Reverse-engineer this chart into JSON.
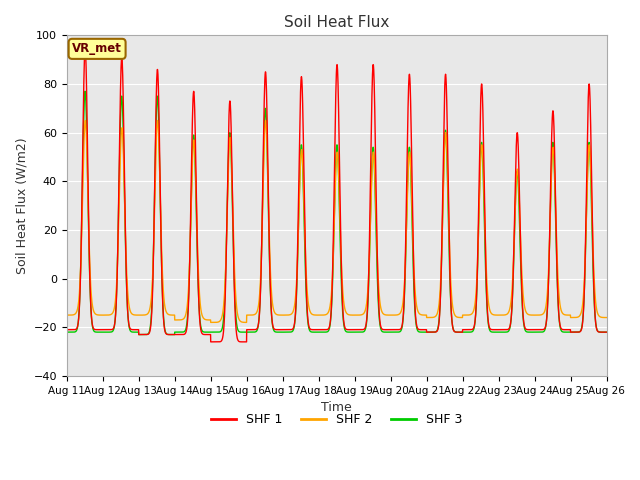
{
  "title": "Soil Heat Flux",
  "xlabel": "Time",
  "ylabel": "Soil Heat Flux (W/m2)",
  "ylim": [
    -40,
    100
  ],
  "xlim": [
    0,
    3600
  ],
  "background_color": "#ffffff",
  "plot_bg_color": "#e8e8e8",
  "grid_color": "#ffffff",
  "legend_labels": [
    "SHF 1",
    "SHF 2",
    "SHF 3"
  ],
  "legend_colors": [
    "#ff0000",
    "#ffa500",
    "#00cc00"
  ],
  "annotation_text": "VR_met",
  "annotation_bg": "#ffff99",
  "annotation_border": "#996600",
  "tick_labels": [
    "Aug 11",
    "Aug 12",
    "Aug 13",
    "Aug 14",
    "Aug 15",
    "Aug 16",
    "Aug 17",
    "Aug 18",
    "Aug 19",
    "Aug 20",
    "Aug 21",
    "Aug 22",
    "Aug 23",
    "Aug 24",
    "Aug 25",
    "Aug 26"
  ],
  "tick_positions": [
    0,
    240,
    480,
    720,
    960,
    1200,
    1440,
    1680,
    1920,
    2160,
    2400,
    2640,
    2880,
    3120,
    3360,
    3600
  ],
  "n_days": 15,
  "pts_per_day": 240,
  "peaks_shf1": [
    95,
    91,
    86,
    77,
    73,
    85,
    83,
    88,
    88,
    84,
    84,
    80,
    60,
    69,
    80
  ],
  "peaks_shf2": [
    65,
    62,
    65,
    57,
    58,
    65,
    53,
    52,
    52,
    52,
    60,
    55,
    45,
    54,
    55
  ],
  "peaks_shf3": [
    77,
    75,
    75,
    59,
    60,
    70,
    55,
    55,
    54,
    54,
    61,
    56,
    44,
    56,
    56
  ],
  "night_mins_shf1": [
    -21,
    -21,
    -23,
    -23,
    -26,
    -21,
    -21,
    -21,
    -21,
    -21,
    -22,
    -21,
    -21,
    -21,
    -22
  ],
  "night_mins_shf2": [
    -15,
    -15,
    -15,
    -17,
    -18,
    -15,
    -15,
    -15,
    -15,
    -15,
    -16,
    -15,
    -15,
    -15,
    -16
  ],
  "night_mins_shf3": [
    -22,
    -22,
    -23,
    -22,
    -22,
    -22,
    -22,
    -22,
    -22,
    -22,
    -22,
    -22,
    -22,
    -22,
    -22
  ],
  "yticks": [
    -40,
    -20,
    0,
    20,
    40,
    60,
    80,
    100
  ]
}
